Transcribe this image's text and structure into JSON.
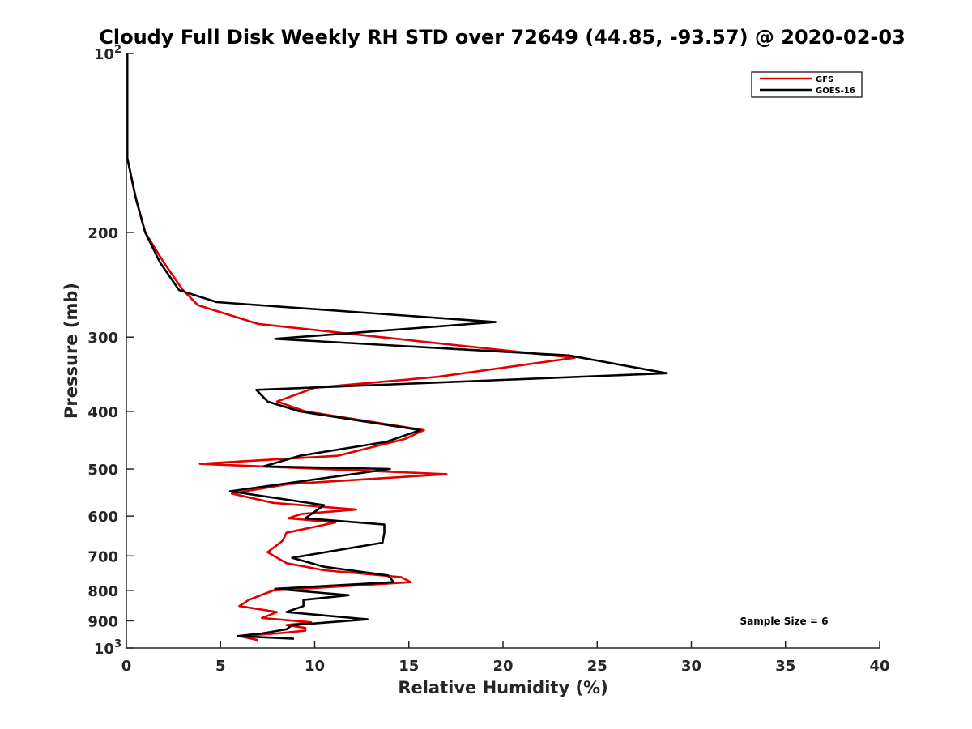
{
  "chart_data": {
    "type": "line",
    "title": "Cloudy Full Disk Weekly RH STD over 72649 (44.85, -93.57) @ 2020-02-03",
    "xlabel": "Relative Humidity (%)",
    "ylabel": "Pressure (mb)",
    "xlim": [
      0,
      40
    ],
    "ylim": [
      100,
      1000
    ],
    "y_scale": "log",
    "y_reversed": true,
    "x_ticks": [
      "0",
      "5",
      "10",
      "15",
      "20",
      "25",
      "30",
      "35",
      "40"
    ],
    "y_ticks": [
      {
        "value": 100,
        "base": "10",
        "exp": "2"
      },
      {
        "value": 200,
        "label": "200"
      },
      {
        "value": 300,
        "label": "300"
      },
      {
        "value": 400,
        "label": "400"
      },
      {
        "value": 500,
        "label": "500"
      },
      {
        "value": 600,
        "label": "600"
      },
      {
        "value": 700,
        "label": "700"
      },
      {
        "value": 800,
        "label": "800"
      },
      {
        "value": 900,
        "label": "900"
      },
      {
        "value": 1000,
        "base": "10",
        "exp": "3"
      }
    ],
    "grid": false,
    "legend_position": "top-right",
    "annotation": "Sample Size = 6",
    "series": [
      {
        "name": "GFS",
        "color": "#e00000",
        "points": [
          [
            0.05,
            100
          ],
          [
            0.05,
            150
          ],
          [
            0.5,
            175
          ],
          [
            1.0,
            200
          ],
          [
            2.0,
            225
          ],
          [
            3.0,
            250
          ],
          [
            3.8,
            265
          ],
          [
            7.0,
            285
          ],
          [
            13.5,
            300
          ],
          [
            23.8,
            325
          ],
          [
            16.5,
            350
          ],
          [
            10.0,
            365
          ],
          [
            8.0,
            385
          ],
          [
            9.5,
            400
          ],
          [
            15.8,
            430
          ],
          [
            14.8,
            445
          ],
          [
            11.2,
            475
          ],
          [
            3.9,
            490
          ],
          [
            17.0,
            510
          ],
          [
            8.6,
            530
          ],
          [
            5.6,
            550
          ],
          [
            7.8,
            570
          ],
          [
            12.2,
            585
          ],
          [
            9.3,
            595
          ],
          [
            8.6,
            605
          ],
          [
            11.1,
            615
          ],
          [
            8.5,
            640
          ],
          [
            8.3,
            660
          ],
          [
            7.5,
            690
          ],
          [
            8.5,
            720
          ],
          [
            10.5,
            740
          ],
          [
            14.6,
            760
          ],
          [
            15.1,
            775
          ],
          [
            7.8,
            800
          ],
          [
            6.5,
            830
          ],
          [
            6.0,
            850
          ],
          [
            8.0,
            870
          ],
          [
            7.2,
            890
          ],
          [
            9.8,
            905
          ],
          [
            8.5,
            915
          ],
          [
            9.5,
            925
          ],
          [
            9.5,
            935
          ],
          [
            8.0,
            945
          ],
          [
            6.0,
            955
          ],
          [
            7.0,
            970
          ]
        ]
      },
      {
        "name": "GOES-16",
        "color": "#000000",
        "points": [
          [
            0.05,
            100
          ],
          [
            0.05,
            150
          ],
          [
            0.5,
            175
          ],
          [
            1.0,
            200
          ],
          [
            1.8,
            225
          ],
          [
            2.8,
            250
          ],
          [
            4.8,
            262
          ],
          [
            19.6,
            283
          ],
          [
            7.9,
            302
          ],
          [
            23.5,
            322
          ],
          [
            28.7,
            345
          ],
          [
            6.9,
            368
          ],
          [
            7.5,
            385
          ],
          [
            9.2,
            400
          ],
          [
            15.6,
            430
          ],
          [
            13.8,
            450
          ],
          [
            9.2,
            475
          ],
          [
            7.3,
            495
          ],
          [
            14.0,
            500
          ],
          [
            5.5,
            545
          ],
          [
            10.5,
            575
          ],
          [
            10.0,
            590
          ],
          [
            9.5,
            605
          ],
          [
            13.7,
            620
          ],
          [
            13.7,
            640
          ],
          [
            13.6,
            665
          ],
          [
            8.8,
            705
          ],
          [
            10.5,
            730
          ],
          [
            13.9,
            755
          ],
          [
            14.2,
            775
          ],
          [
            7.9,
            795
          ],
          [
            11.8,
            815
          ],
          [
            9.4,
            830
          ],
          [
            9.4,
            850
          ],
          [
            8.5,
            870
          ],
          [
            12.8,
            895
          ],
          [
            8.8,
            915
          ],
          [
            8.5,
            930
          ],
          [
            7.2,
            945
          ],
          [
            5.9,
            955
          ],
          [
            8.9,
            965
          ]
        ]
      }
    ]
  },
  "colors": {
    "axis": "#262626",
    "background": "#ffffff"
  }
}
